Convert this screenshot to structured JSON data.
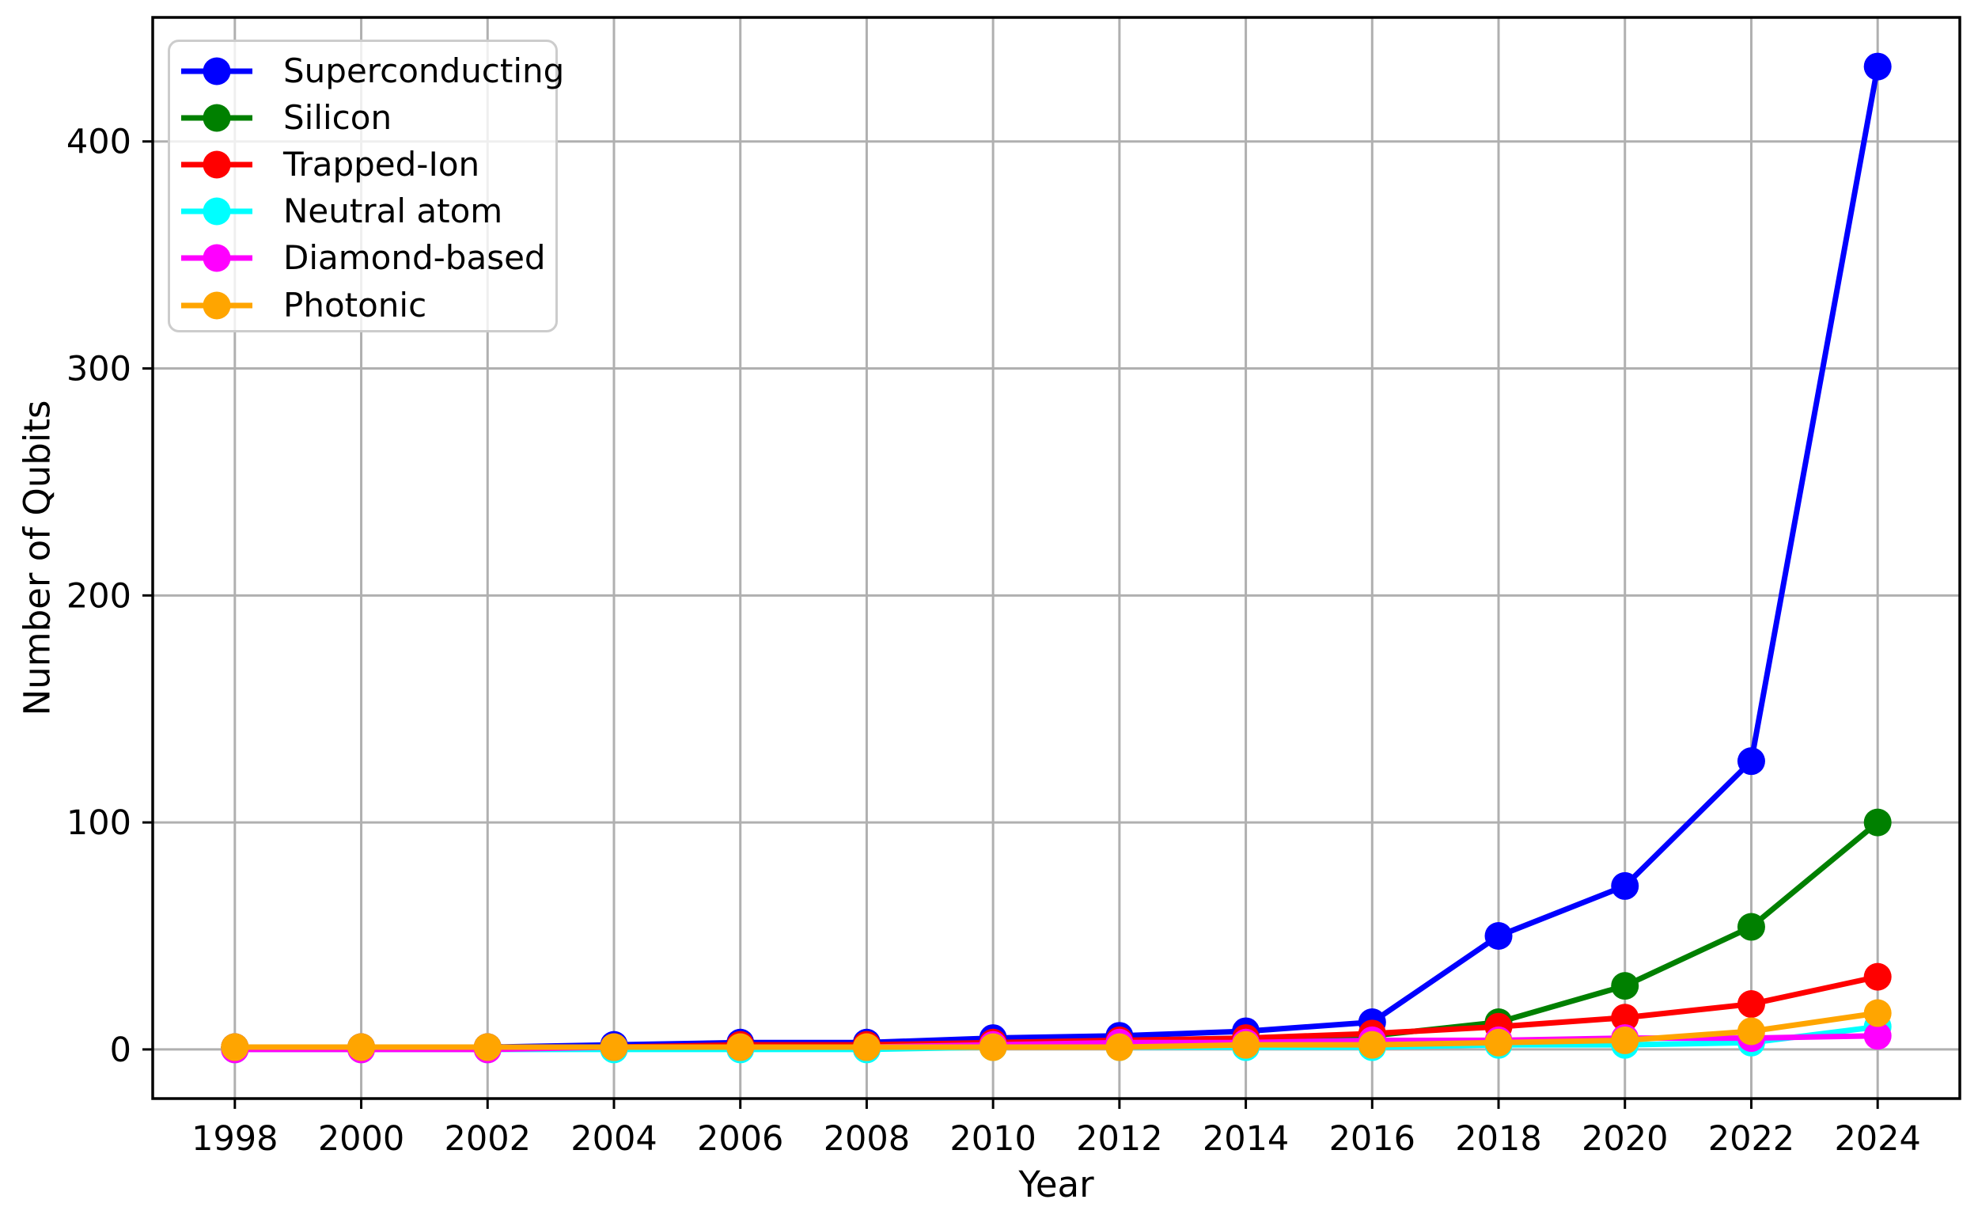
{
  "chart_data": {
    "type": "line",
    "title": "",
    "xlabel": "Year",
    "ylabel": "Number of Qubits",
    "x": [
      1998,
      2000,
      2002,
      2004,
      2006,
      2008,
      2010,
      2012,
      2014,
      2016,
      2018,
      2020,
      2022,
      2024
    ],
    "x_ticks": [
      "1998",
      "2000",
      "2002",
      "2004",
      "2006",
      "2008",
      "2010",
      "2012",
      "2014",
      "2016",
      "2018",
      "2020",
      "2022",
      "2024"
    ],
    "y_ticks": [
      "0",
      "100",
      "200",
      "300",
      "400"
    ],
    "y_tick_values": [
      0,
      100,
      200,
      300,
      400
    ],
    "xlim": [
      1996.7,
      2025.3
    ],
    "ylim": [
      -21.65,
      454.65
    ],
    "grid": true,
    "grid_color": "#b0b0b0",
    "background": "#ffffff",
    "legend_position": "upper-left",
    "series": [
      {
        "name": "Superconducting",
        "color": "#0000ff",
        "values": [
          1,
          1,
          1,
          2,
          3,
          3,
          5,
          6,
          8,
          12,
          50,
          72,
          127,
          433
        ]
      },
      {
        "name": "Silicon",
        "color": "#008000",
        "values": [
          1,
          1,
          1,
          1,
          1,
          2,
          2,
          3,
          4,
          6,
          12,
          28,
          54,
          100
        ]
      },
      {
        "name": "Trapped-Ion",
        "color": "#ff0000",
        "values": [
          1,
          1,
          1,
          1,
          2,
          2,
          3,
          4,
          5,
          7,
          10,
          14,
          20,
          32
        ]
      },
      {
        "name": "Neutral atom",
        "color": "#00ffff",
        "values": [
          0,
          0,
          0,
          0,
          0,
          0,
          1,
          1,
          1,
          1,
          2,
          2,
          3,
          10
        ]
      },
      {
        "name": "Diamond-based",
        "color": "#ff00ff",
        "values": [
          0,
          0,
          0,
          1,
          1,
          1,
          2,
          3,
          3,
          4,
          4,
          5,
          5,
          6
        ]
      },
      {
        "name": "Photonic",
        "color": "#ffa500",
        "values": [
          1,
          1,
          1,
          1,
          1,
          1,
          1,
          1,
          2,
          2,
          3,
          4,
          8,
          16
        ]
      }
    ]
  }
}
